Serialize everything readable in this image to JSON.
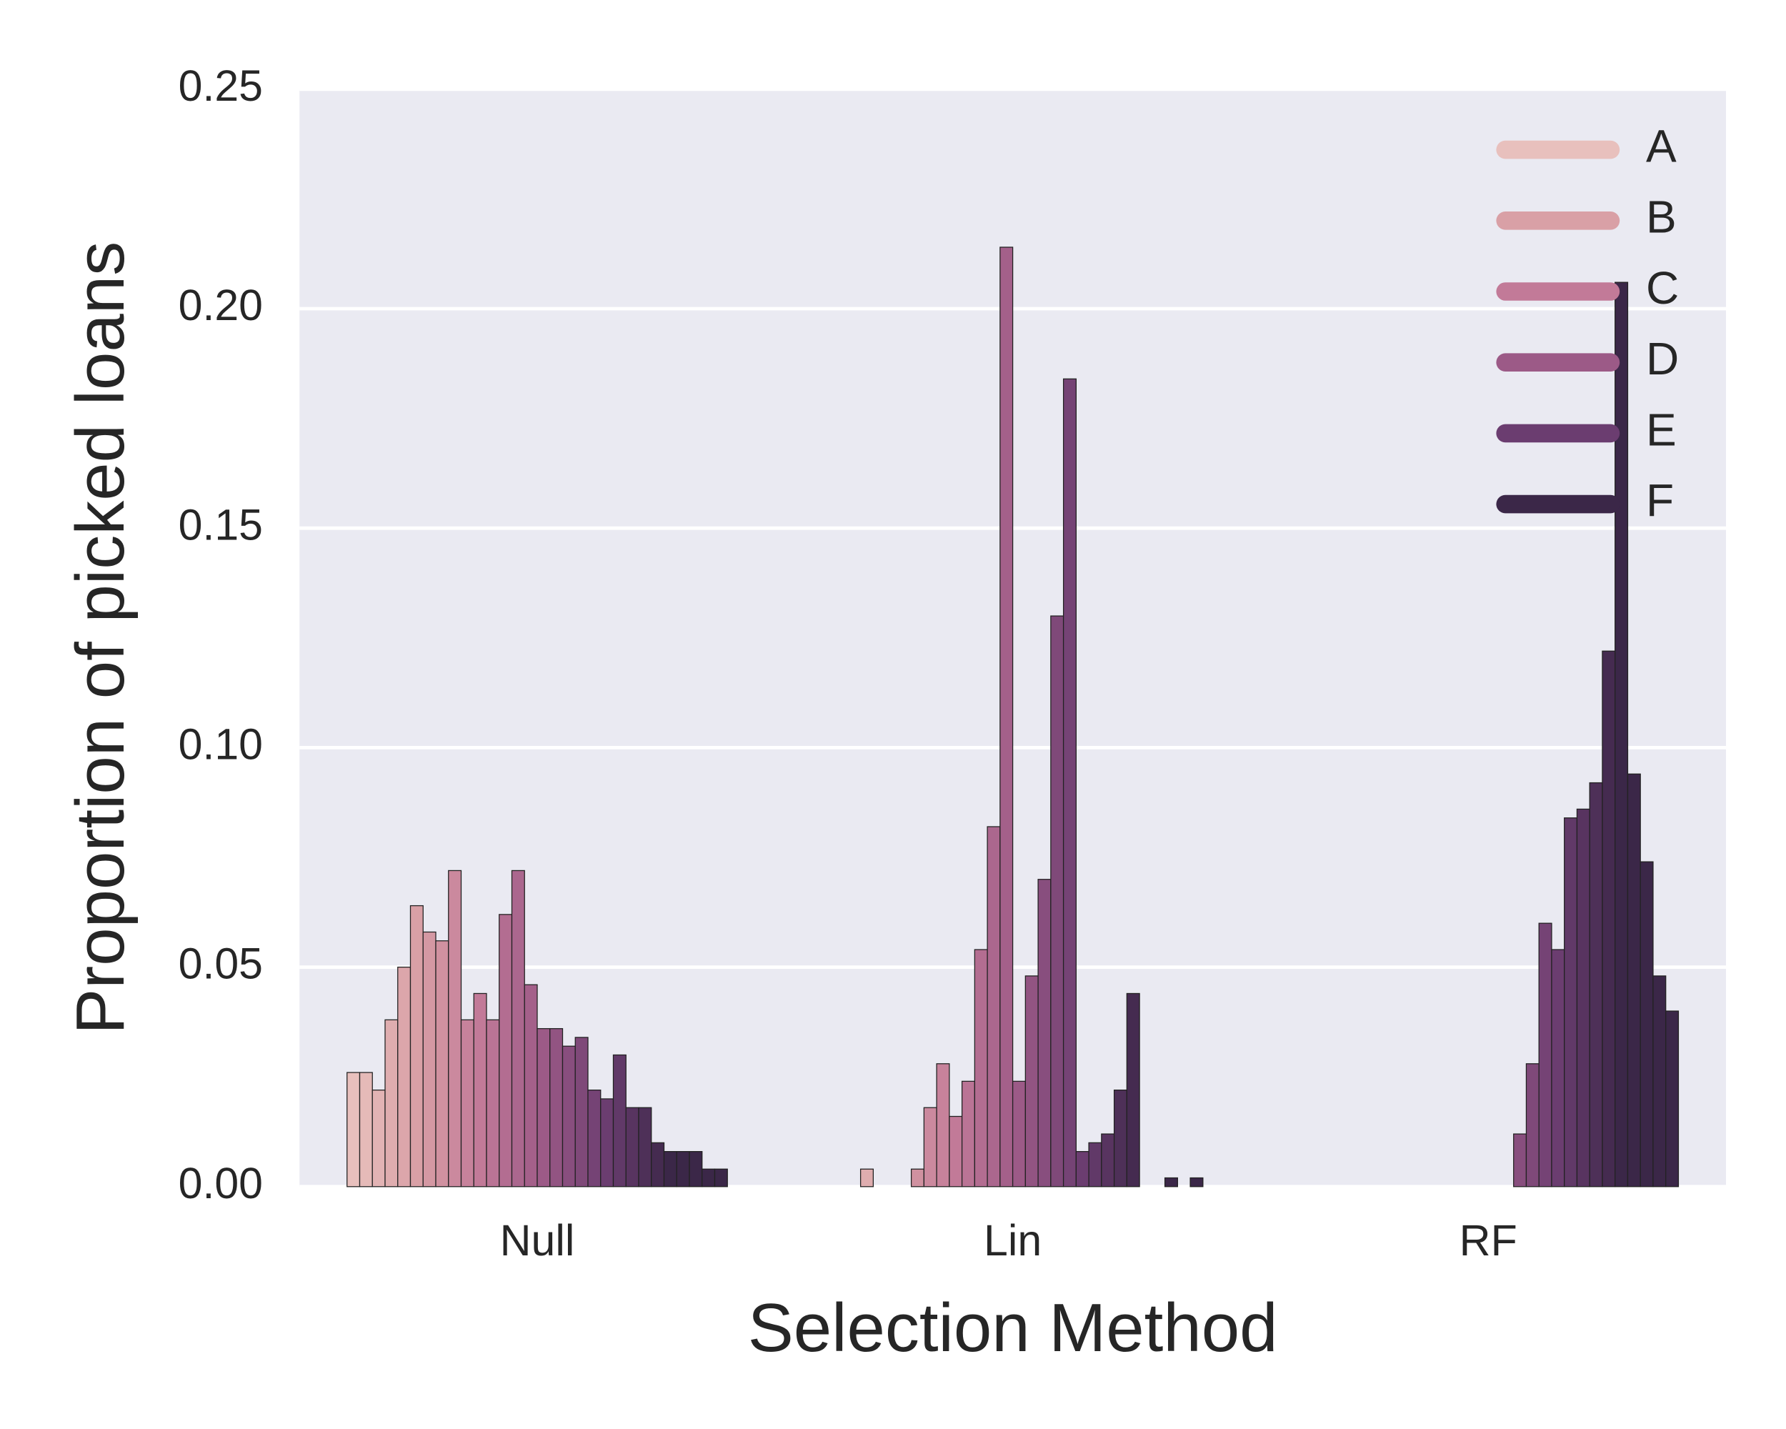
{
  "chart_data": {
    "type": "bar",
    "xlabel": "Selection Method",
    "ylabel": "Proportion of picked loans",
    "categories": [
      "Null",
      "Lin",
      "RF"
    ],
    "series": [
      {
        "name": "A",
        "color": "#e8c0bd",
        "values": [
          [
            0.026,
            0.026,
            0.022,
            0.038,
            0.05
          ],
          [
            0,
            0,
            0,
            0.004,
            0
          ],
          [
            0,
            0,
            0,
            0,
            0
          ]
        ]
      },
      {
        "name": "B",
        "color": "#d9a0a6",
        "values": [
          [
            0.064,
            0.058,
            0.056,
            0.072,
            0.038
          ],
          [
            0,
            0,
            0.004,
            0.018,
            0.028
          ],
          [
            0,
            0,
            0,
            0,
            0
          ]
        ]
      },
      {
        "name": "C",
        "color": "#c27a98",
        "values": [
          [
            0.044,
            0.038,
            0.062,
            0.072,
            0.046
          ],
          [
            0.016,
            0.024,
            0.054,
            0.082,
            0.214
          ],
          [
            0,
            0,
            0,
            0,
            0
          ]
        ]
      },
      {
        "name": "D",
        "color": "#9c5a87",
        "values": [
          [
            0.036,
            0.036,
            0.032,
            0.034,
            0.022
          ],
          [
            0.024,
            0.048,
            0.07,
            0.13,
            0.184
          ],
          [
            0,
            0,
            0.012,
            0.028,
            0.06
          ]
        ]
      },
      {
        "name": "E",
        "color": "#6b3d70",
        "values": [
          [
            0.02,
            0.03,
            0.018,
            0.018,
            0.01
          ],
          [
            0.008,
            0.01,
            0.012,
            0.022,
            0.044
          ],
          [
            0.054,
            0.084,
            0.086,
            0.092,
            0.122
          ]
        ]
      },
      {
        "name": "F",
        "color": "#3b2748",
        "values": [
          [
            0.008,
            0.008,
            0.008,
            0.004,
            0.004
          ],
          [
            0,
            0,
            0.002,
            0,
            0.002
          ],
          [
            0.206,
            0.094,
            0.074,
            0.048,
            0.04
          ]
        ]
      }
    ],
    "ylim": [
      0,
      0.25
    ],
    "yticks": [
      {
        "value": 0,
        "label": "0.00"
      },
      0.05,
      {
        "value": 0.1,
        "label": "0.10"
      },
      0.15,
      {
        "value": 0.2,
        "label": "0.20"
      },
      0.25
    ],
    "grid": true,
    "legend": "upper right"
  }
}
